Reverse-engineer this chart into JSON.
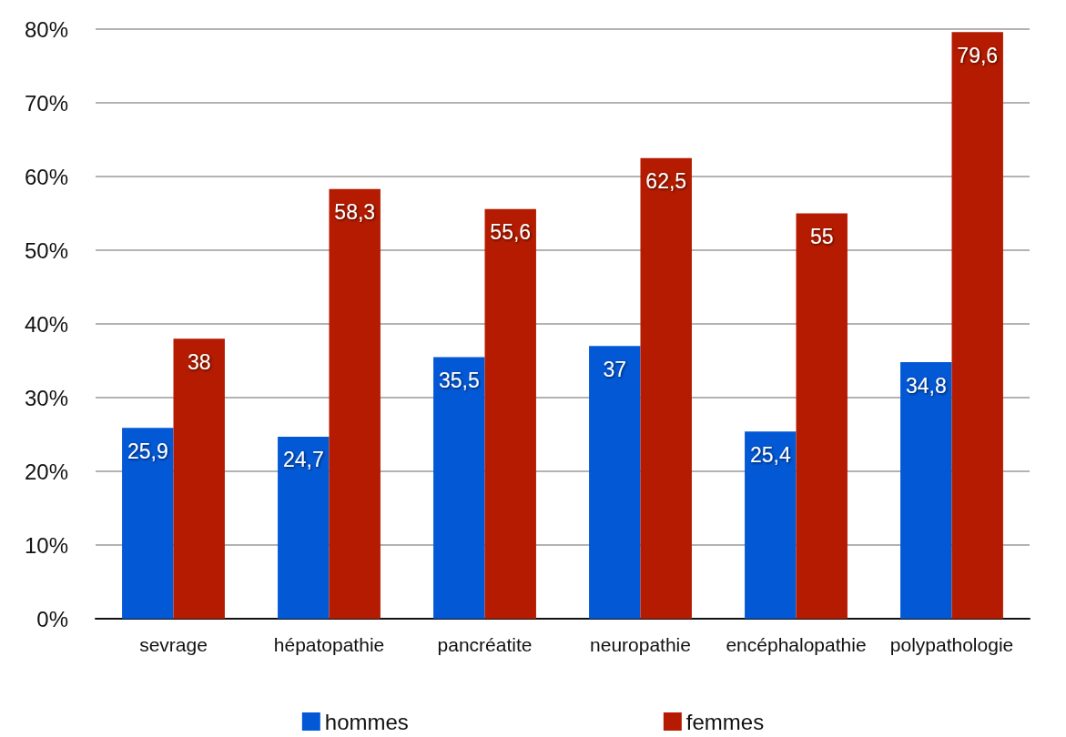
{
  "chart_data": {
    "type": "bar",
    "categories": [
      "sevrage",
      "hépatopathie",
      "pancréatite",
      "neuropathie",
      "encéphalopathie",
      "polypathologie"
    ],
    "series": [
      {
        "name": "hommes",
        "color": "#0358d6",
        "values": [
          25.9,
          24.7,
          35.5,
          37,
          25.4,
          34.8
        ],
        "value_labels": [
          "25,9",
          "24,7",
          "35,5",
          "37",
          "25,4",
          "34,8"
        ]
      },
      {
        "name": "femmes",
        "color": "#b51b00",
        "values": [
          38,
          58.3,
          55.6,
          62.5,
          55,
          79.6
        ],
        "value_labels": [
          "38",
          "58,3",
          "55,6",
          "62,5",
          "55",
          "79,6"
        ]
      }
    ],
    "ylim": [
      0,
      80
    ],
    "yticks": [
      {
        "value": 0,
        "label": "0%"
      },
      {
        "value": 10,
        "label": "10%"
      },
      {
        "value": 20,
        "label": "20%"
      },
      {
        "value": 30,
        "label": "30%"
      },
      {
        "value": 40,
        "label": "40%"
      },
      {
        "value": 50,
        "label": "50%"
      },
      {
        "value": 60,
        "label": "60%"
      },
      {
        "value": 70,
        "label": "70%"
      },
      {
        "value": 80,
        "label": "80%"
      }
    ],
    "grid": "y",
    "legend": "bottom"
  }
}
